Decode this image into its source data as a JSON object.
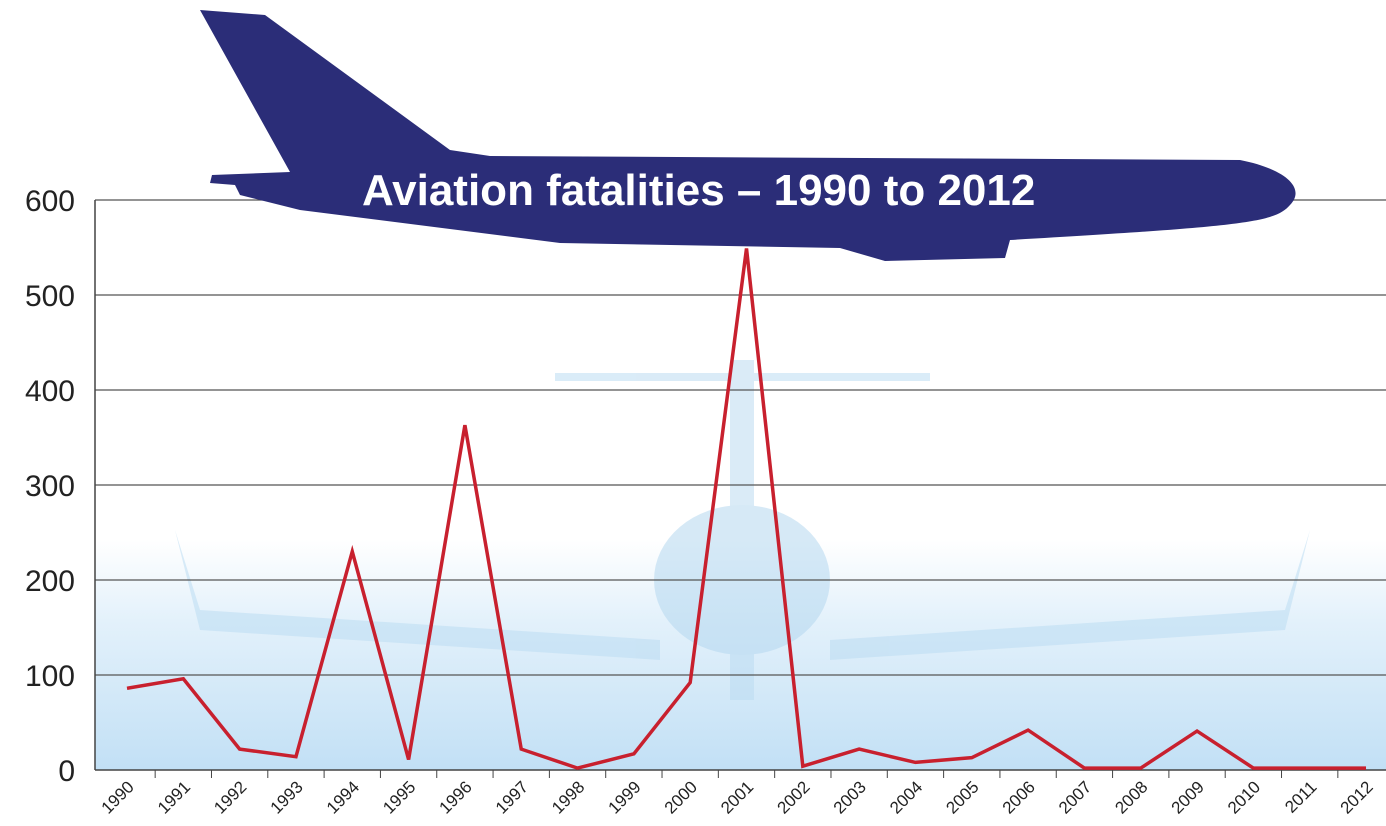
{
  "chart_data": {
    "type": "line",
    "title": "Aviation fatalities – 1990 to 2012",
    "categories": [
      "1990",
      "1991",
      "1992",
      "1993",
      "1994",
      "1995",
      "1996",
      "1997",
      "1998",
      "1999",
      "2000",
      "2001",
      "2002",
      "2003",
      "2004",
      "2005",
      "2006",
      "2007",
      "2008",
      "2009",
      "2010",
      "2011",
      "2012"
    ],
    "series": [
      {
        "color": "#c8202e",
        "values": [
          86,
          96,
          22,
          14,
          230,
          11,
          363,
          22,
          2,
          17,
          92,
          549,
          4,
          22,
          8,
          13,
          42,
          2,
          2,
          41,
          2,
          2,
          2
        ]
      }
    ],
    "ylim": [
      0,
      600
    ],
    "yticks": [
      0,
      100,
      200,
      300,
      400,
      500,
      600
    ],
    "grid": true
  }
}
